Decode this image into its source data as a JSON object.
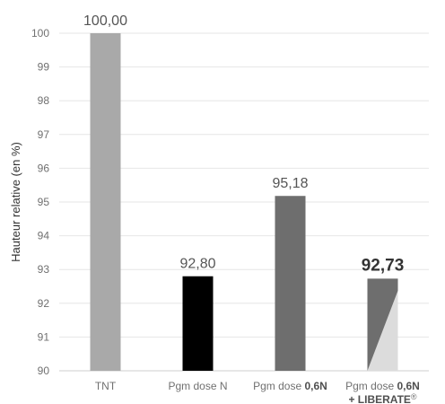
{
  "chart_data": {
    "type": "bar",
    "title": "",
    "xlabel": "",
    "ylabel": "Hauteur relative (en %)",
    "ylim": [
      90,
      100
    ],
    "yticks": [
      90,
      91,
      92,
      93,
      94,
      95,
      96,
      97,
      98,
      99,
      100
    ],
    "grid": true,
    "legend": "none",
    "categories": [
      {
        "parts": [
          {
            "text": "TNT",
            "bold": false
          }
        ]
      },
      {
        "parts": [
          {
            "text": "Pgm dose N",
            "bold": false
          }
        ]
      },
      {
        "parts": [
          {
            "text": "Pgm dose ",
            "bold": false
          },
          {
            "text": "0,6N",
            "bold": true
          }
        ]
      },
      {
        "parts": [
          {
            "text": "Pgm dose ",
            "bold": false
          },
          {
            "text": "0,6N",
            "bold": true
          }
        ],
        "line2": [
          {
            "text": "+ LIBERATE",
            "bold": true
          },
          {
            "text": "®",
            "bold": false,
            "sup": true
          }
        ]
      }
    ],
    "values": [
      100.0,
      92.8,
      95.18,
      92.73
    ],
    "value_labels": [
      "100,00",
      "92,80",
      "95,18",
      "92,73"
    ],
    "value_label_bold": [
      false,
      false,
      false,
      true
    ],
    "colors": [
      "#a9a9a9",
      "#000000",
      "#6e6e6e",
      "#6e6e6e"
    ],
    "accent_color": "#dcdcdc",
    "split_last_bar": true
  }
}
